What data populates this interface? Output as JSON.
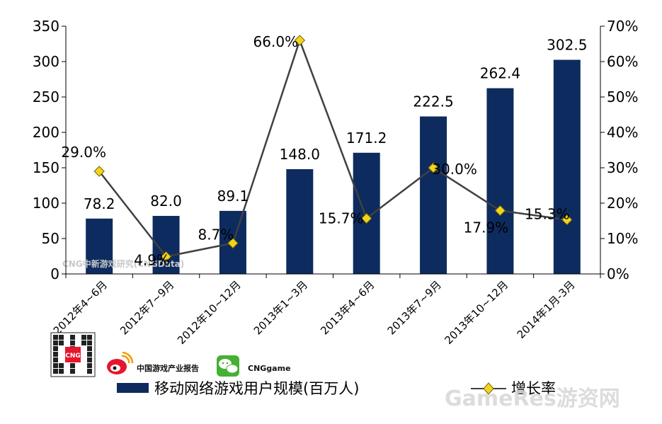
{
  "chart_data": {
    "type": "bar",
    "categories": [
      "2012年4~6月",
      "2012年7~9月",
      "2012年10~12月",
      "2013年1~3月",
      "2013年4~6月",
      "2013年7~9月",
      "2013年10~12月",
      "2014年1月-3月"
    ],
    "series": [
      {
        "name": "移动网络游戏用户规模(百万人)",
        "type": "bar",
        "axis": "left",
        "color": "#0d2b5e",
        "values": [
          78.2,
          82.0,
          89.1,
          148.0,
          171.2,
          222.5,
          262.4,
          302.5
        ],
        "labels": [
          "78.2",
          "82.0",
          "89.1",
          "148.0",
          "171.2",
          "222.5",
          "262.4",
          "302.5"
        ]
      },
      {
        "name": "增长率",
        "type": "line",
        "axis": "right",
        "color": "#404040",
        "marker_color": "#f6d21f",
        "values": [
          29.0,
          4.9,
          8.7,
          66.0,
          15.7,
          30.0,
          17.9,
          15.3
        ],
        "labels": [
          "29.0%",
          "4.9%",
          "8.7%",
          "66.0%",
          "15.7%",
          "30.0%",
          "17.9%",
          "15.3%"
        ]
      }
    ],
    "y_left": {
      "min": 0,
      "max": 350,
      "ticks": [
        0,
        50,
        100,
        150,
        200,
        250,
        300,
        350
      ],
      "tick_labels": [
        "0",
        "50",
        "100",
        "150",
        "200",
        "250",
        "300",
        "350"
      ]
    },
    "y_right": {
      "min": 0,
      "max": 70,
      "ticks": [
        0,
        10,
        20,
        30,
        40,
        50,
        60,
        70
      ],
      "tick_labels": [
        "0%",
        "10%",
        "20%",
        "30%",
        "40%",
        "50%",
        "60%",
        "70%"
      ]
    },
    "grid": false,
    "legend_position": "bottom"
  },
  "branding": {
    "qr_badge": "CNG",
    "weibo_account": "中国游戏产业报告",
    "wechat_account": "CNGgame",
    "chart_watermark": "CNG中新游戏研究(CNGData)",
    "site_watermark": "GameRes游资网"
  },
  "colors": {
    "weibo_red": "#e6162d",
    "wechat_green": "#46b035"
  }
}
